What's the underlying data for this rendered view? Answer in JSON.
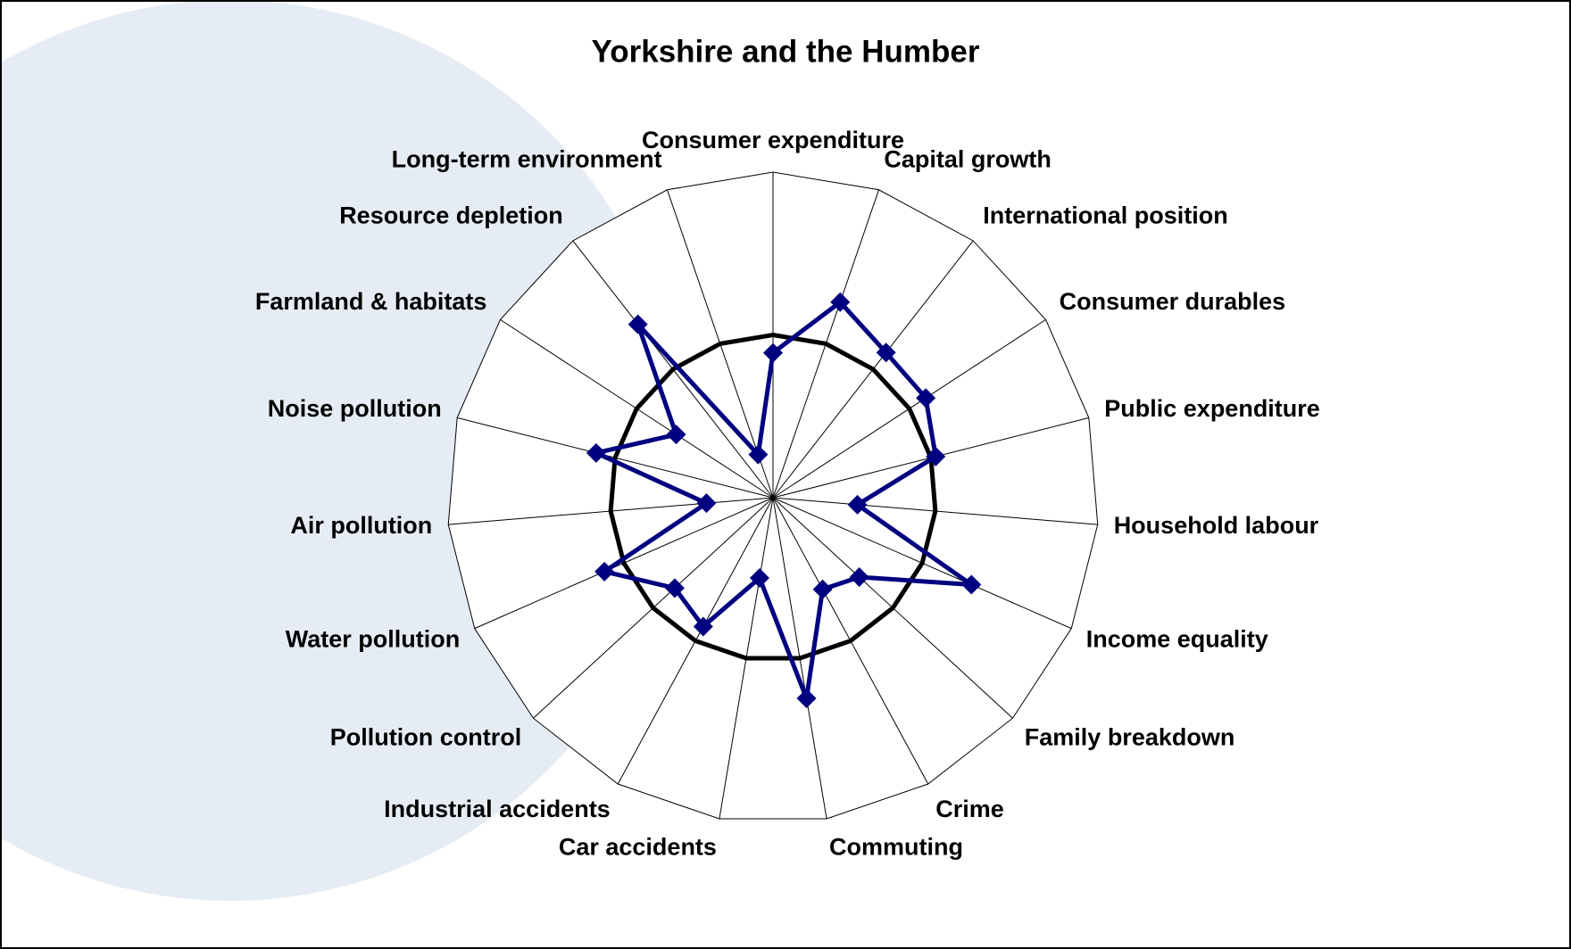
{
  "chart_data": {
    "type": "radar",
    "title": "Yorkshire and the Humber",
    "categories": [
      "Consumer expenditure",
      "Capital growth",
      "International position",
      "Consumer durables",
      "Public expenditure",
      "Household labour",
      "Income equality",
      "Family breakdown",
      "Crime",
      "Commuting",
      "Car accidents",
      "Industrial accidents",
      "Pollution control",
      "Water pollution",
      "Air pollution",
      "Noise pollution",
      "Farmland & habitats",
      "Resource depletion",
      "Long-term environment"
    ],
    "series": [
      {
        "color": "#000000",
        "values": [
          1,
          1,
          1,
          1,
          1,
          1,
          1,
          1,
          1,
          1,
          1,
          1,
          1,
          1,
          1,
          1,
          1,
          1,
          1
        ]
      },
      {
        "color": "#000080",
        "values": [
          0.89,
          1.27,
          1.13,
          1.12,
          1.03,
          0.52,
          1.33,
          0.72,
          0.64,
          1.25,
          0.5,
          0.9,
          0.82,
          1.13,
          0.41,
          1.12,
          0.71,
          1.35,
          0.28
        ]
      }
    ],
    "ylim": [
      0,
      2
    ]
  }
}
